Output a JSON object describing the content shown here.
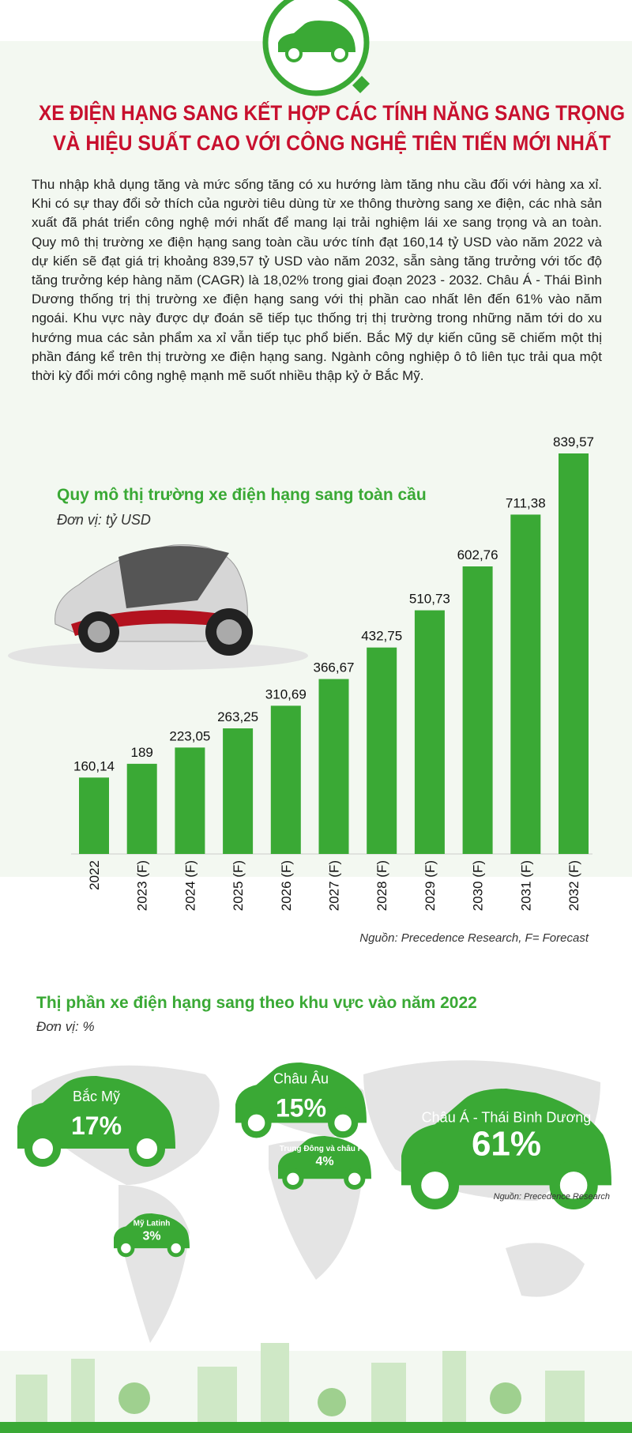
{
  "header": {
    "title": [
      "XE ĐIỆN HẠNG SANG KẾT HỢP CÁC TÍNH NĂNG SANG TRỌNG",
      "VÀ HIỆU SUẤT CAO VỚI CÔNG NGHỆ TIÊN TIẾN MỚI NHẤT"
    ]
  },
  "intro": "Thu nhập khả dụng tăng và mức sống tăng có xu hướng làm tăng nhu cầu đối với hàng xa xỉ. Khi có sự thay đổi sở thích của người tiêu dùng từ xe thông thường sang xe điện, các nhà sản xuất đã phát triển công nghệ mới nhất để mang lại trải nghiệm lái xe sang trọng và an toàn. Quy mô thị trường xe điện hạng sang toàn cầu ước tính đạt 160,14 tỷ USD vào năm 2022 và dự kiến sẽ đạt giá trị khoảng 839,57 tỷ USD vào năm 2032, sẵn sàng tăng trưởng với tốc độ tăng trưởng kép hàng năm (CAGR) là 18,02% trong giai đoạn 2023 - 2032. Châu Á - Thái Bình Dương thống trị thị trường xe điện hạng sang với thị phần cao nhất lên đến 61% vào năm ngoái. Khu vực này được dự đoán sẽ tiếp tục thống trị thị trường trong những năm tới do xu hướng mua các sản phẩm xa xỉ vẫn tiếp tục phổ biến. Bắc Mỹ dự kiến cũng sẽ chiếm một thị phần đáng kể trên thị trường xe điện hạng sang. Ngành công nghiệp ô tô liên tục trải qua một thời kỳ đổi mới công nghệ mạnh mẽ suốt nhiều thập kỷ ở Bắc Mỹ.",
  "chart_data": [
    {
      "type": "bar",
      "title": "Quy mô thị trường xe điện hạng sang toàn cầu",
      "subtitle": "Đơn vị: tỷ USD",
      "categories": [
        "2022",
        "2023 (F)",
        "2024 (F)",
        "2025 (F)",
        "2026 (F)",
        "2027 (F)",
        "2028 (F)",
        "2029 (F)",
        "2030 (F)",
        "2031 (F)",
        "2032 (F)"
      ],
      "values": [
        160.14,
        189,
        223.05,
        263.25,
        310.69,
        366.67,
        432.75,
        510.73,
        602.76,
        711.38,
        839.57
      ],
      "value_labels": [
        "160,14",
        "189",
        "223,05",
        "263,25",
        "310,69",
        "366,67",
        "432,75",
        "510,73",
        "602,76",
        "711,38",
        "839,57"
      ],
      "color": "#3aa935",
      "source": "Nguồn: Precedence Research, F= Forecast"
    },
    {
      "type": "pictogram",
      "title": "Thị phần xe điện hạng sang theo khu vực vào năm 2022",
      "subtitle": "Đơn vị: %",
      "categories": [
        "Bắc Mỹ",
        "Châu Âu",
        "Trung Đông và châu Phi",
        "Mỹ Latinh",
        "Châu Á - Thái Bình Dương"
      ],
      "values": [
        17,
        15,
        4,
        3,
        61
      ],
      "value_labels": [
        "17%",
        "15%",
        "4%",
        "3%",
        "61%"
      ],
      "color": "#3aa935",
      "source": "Nguồn: Precedence Research"
    }
  ]
}
